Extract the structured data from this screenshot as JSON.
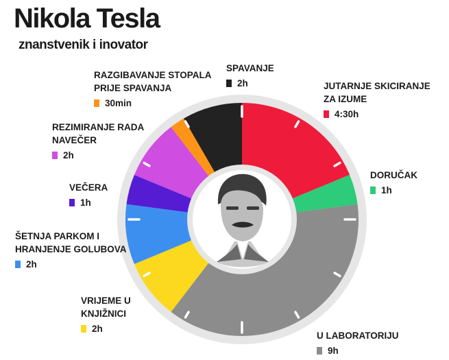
{
  "header": {
    "title": "Nikola Tesla",
    "subtitle": "znanstvenik i inovator"
  },
  "chart_data": {
    "type": "pie",
    "unit": "h",
    "total": 24,
    "start": "12 o'clock, clockwise",
    "slices": [
      {
        "label": [
          "JUTARNJE SKICIRANJE",
          "ZA IZUME"
        ],
        "value": 4.5,
        "value_label": "4:30h",
        "color": "#ee1c3a"
      },
      {
        "label": [
          "DORUČAK"
        ],
        "value": 1,
        "value_label": "1h",
        "color": "#2dcb7a"
      },
      {
        "label": [
          "U LABORATORIJU"
        ],
        "value": 9,
        "value_label": "9h",
        "color": "#8c8c8c"
      },
      {
        "label": [
          "VRIJEME U",
          "KNJIŽNICI"
        ],
        "value": 2,
        "value_label": "2h",
        "color": "#fcd81f"
      },
      {
        "label": [
          "ŠETNJA PARKOM I",
          "HRANJENJE GOLUBOVA"
        ],
        "value": 2,
        "value_label": "2h",
        "color": "#3d8fef"
      },
      {
        "label": [
          "VEČERA"
        ],
        "value": 1,
        "value_label": "1h",
        "color": "#561cd4"
      },
      {
        "label": [
          "REZIMIRANJE RADA",
          "NAVEČER"
        ],
        "value": 2,
        "value_label": "2h",
        "color": "#cf4de1"
      },
      {
        "label": [
          "RAZGIBAVANJE STOPALA",
          "PRIJE SPAVANJA"
        ],
        "value": 0.5,
        "value_label": "30min",
        "color": "#fc9418"
      },
      {
        "label": [
          "SPAVANJE"
        ],
        "value": 2,
        "value_label": "2h",
        "color": "#222222"
      }
    ],
    "legend": "labels around chart"
  }
}
